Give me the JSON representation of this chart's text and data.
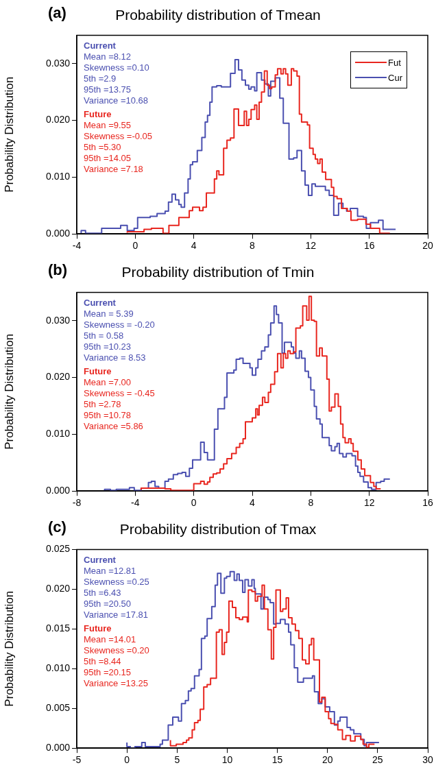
{
  "chart_data": [
    {
      "type": "step",
      "title": "Probability distribution of Tmean",
      "ylabel": "Probability Distribution",
      "annotations": [
        "(a)",
        "Current",
        "Mean =8.12",
        "Skewness =0.10",
        "5th =2.9",
        "95th =13.75",
        "Variance =10.68",
        "Future",
        "Mean =9.55",
        "Skewness =-0.05",
        "5th =5.30",
        "95th =14.05",
        "Variance =7.18"
      ],
      "xlim": [
        -4,
        20
      ],
      "xticks": [
        -4,
        0,
        4,
        8,
        12,
        16,
        20
      ],
      "ylim": [
        0,
        0.035
      ],
      "yticks": [
        {
          "value": 0,
          "label": "0.000"
        },
        {
          "value": 0.01,
          "label": "0.010"
        },
        {
          "value": 0.02,
          "label": "0.020"
        },
        {
          "value": 0.03,
          "label": "0.030"
        }
      ],
      "legend": "top right",
      "series": [
        {
          "name": "Fut",
          "color": "#e8261f",
          "x": [
            -0.55,
            0.6,
            1.1,
            1.9,
            2.3,
            2.98,
            3.69,
            3.92,
            4.39,
            4.63,
            4.86,
            5.41,
            5.57,
            5.72,
            6.04,
            6.27,
            6.51,
            6.75,
            7.06,
            7.45,
            7.61,
            7.76,
            7.92,
            8.16,
            8.31,
            8.47,
            8.63,
            8.83,
            9.02,
            9.18,
            9.33,
            9.57,
            9.73,
            9.96,
            10.12,
            10.28,
            10.43,
            10.67,
            10.83,
            11.06,
            11.22,
            11.37,
            11.77,
            11.92,
            12.16,
            12.31,
            12.47,
            12.63,
            12.78,
            13.02,
            13.41,
            13.57,
            13.8,
            14.1,
            14.5,
            14.75,
            15.2,
            15.77,
            16.08,
            16.71,
            17.0,
            17.41
          ],
          "values": [
            0.0002,
            0.0004,
            0.0008,
            0.001,
            0.0001,
            0.0015,
            0.0029,
            0.0041,
            0.0047,
            0.0041,
            0.0047,
            0.0072,
            0.0097,
            0.0111,
            0.0104,
            0.0151,
            0.0165,
            0.0169,
            0.022,
            0.0191,
            0.0216,
            0.0191,
            0.0202,
            0.0219,
            0.0227,
            0.0202,
            0.0232,
            0.025,
            0.0287,
            0.0262,
            0.0256,
            0.0259,
            0.028,
            0.0291,
            0.0282,
            0.0291,
            0.0282,
            0.0262,
            0.0291,
            0.0287,
            0.0278,
            0.0211,
            0.0197,
            0.0192,
            0.0151,
            0.014,
            0.0132,
            0.0124,
            0.0132,
            0.0109,
            0.0096,
            0.0082,
            0.0066,
            0.0062,
            0.0045,
            0.004,
            0.0024,
            0.0026,
            0.0017,
            0.001,
            0.0001,
            0.0001
          ]
        },
        {
          "name": "Cur",
          "color": "#4a4fb0",
          "x": [
            -3.7,
            -3.4,
            -2.3,
            -1.0,
            -0.55,
            -0.08,
            0.16,
            1.02,
            1.49,
            2.04,
            2.27,
            2.51,
            2.75,
            2.98,
            3.14,
            3.37,
            3.61,
            3.76,
            3.92,
            4.24,
            4.55,
            4.78,
            4.94,
            5.1,
            5.25,
            5.57,
            5.88,
            6.51,
            6.82,
            7.06,
            7.29,
            7.53,
            7.76,
            7.92,
            8.16,
            8.31,
            8.63,
            8.86,
            9.1,
            9.26,
            9.57,
            9.88,
            10.12,
            10.51,
            10.83,
            11.06,
            11.37,
            11.61,
            11.84,
            12.08,
            12.31,
            13.0,
            13.26,
            13.57,
            13.9,
            14.2,
            14.45,
            14.7,
            15.2,
            15.6,
            15.8,
            16.08,
            16.63,
            16.94,
            17.1,
            17.8
          ],
          "values": [
            0.0001,
            0.0006,
            0.0001,
            0.001,
            0.0015,
            0.0006,
            0.001,
            0.0029,
            0.0031,
            0.0036,
            0.004,
            0.0056,
            0.007,
            0.006,
            0.0052,
            0.0047,
            0.0072,
            0.0097,
            0.0122,
            0.0127,
            0.0147,
            0.017,
            0.0197,
            0.0209,
            0.0232,
            0.0259,
            0.0261,
            0.0259,
            0.0283,
            0.0307,
            0.0289,
            0.0271,
            0.0262,
            0.0255,
            0.0259,
            0.0252,
            0.0284,
            0.0271,
            0.0264,
            0.0243,
            0.0269,
            0.0275,
            0.0239,
            0.0195,
            0.0132,
            0.0134,
            0.0147,
            0.0111,
            0.0086,
            0.0068,
            0.0088,
            0.0084,
            0.0077,
            0.0068,
            0.0033,
            0.0054,
            0.0045,
            0.004,
            0.0045,
            0.0031,
            0.0029,
            0.001,
            0.002,
            0.0024,
            0.0008,
            0.0008
          ]
        }
      ]
    },
    {
      "type": "step",
      "title": "Probability distribution of Tmin",
      "ylabel": "Probability Distribution",
      "annotations": [
        "(b)",
        "Current",
        "Mean = 5.39",
        "Skewness = -0.20",
        "5th = 0.58",
        "95th =10.23",
        "Variance = 8.53",
        "Future",
        "Mean =7.00",
        "Skewness = -0.45",
        "5th =2.78",
        "95th =10.78",
        "Variance =5.86"
      ],
      "xlim": [
        -8,
        16
      ],
      "xticks": [
        -8,
        -4,
        0,
        4,
        8,
        12,
        16
      ],
      "ylim": [
        0,
        0.035
      ],
      "yticks": [
        {
          "value": 0,
          "label": "0.000"
        },
        {
          "value": 0.01,
          "label": "0.010"
        },
        {
          "value": 0.02,
          "label": "0.020"
        },
        {
          "value": 0.03,
          "label": "0.030"
        }
      ],
      "series": [
        {
          "color": "#e8261f",
          "x": [
            -3.6,
            -1.97,
            -1.57,
            0.0,
            0.47,
            0.71,
            0.94,
            1.1,
            1.33,
            1.57,
            1.8,
            2.04,
            2.27,
            2.59,
            2.9,
            3.14,
            3.37,
            3.53,
            4.0,
            4.24,
            4.36,
            4.47,
            4.7,
            4.86,
            5.1,
            5.26,
            5.53,
            5.73,
            5.96,
            6.12,
            6.28,
            6.43,
            6.59,
            6.82,
            6.98,
            7.29,
            7.45,
            7.72,
            7.88,
            8.04,
            8.24,
            8.39,
            8.6,
            8.78,
            9.1,
            9.26,
            9.41,
            9.65,
            9.88,
            10.04,
            10.2,
            10.35,
            10.59,
            10.75,
            10.9,
            11.22,
            11.45,
            11.69,
            12.08,
            12.31,
            12.47,
            12.63,
            12.78
          ],
          "values": [
            0.0002,
            0.0005,
            0.0004,
            0.0001,
            0.0013,
            0.0017,
            0.0012,
            0.0016,
            0.0024,
            0.003,
            0.0032,
            0.0039,
            0.0048,
            0.0057,
            0.0066,
            0.0077,
            0.0084,
            0.0092,
            0.0122,
            0.0129,
            0.0145,
            0.0134,
            0.0151,
            0.0165,
            0.0156,
            0.0174,
            0.0188,
            0.021,
            0.0242,
            0.0217,
            0.0242,
            0.0234,
            0.0247,
            0.0242,
            0.0245,
            0.0287,
            0.0291,
            0.0326,
            0.0301,
            0.0343,
            0.0301,
            0.0299,
            0.0238,
            0.0252,
            0.0238,
            0.0197,
            0.0141,
            0.0148,
            0.0171,
            0.0149,
            0.0118,
            0.0094,
            0.0085,
            0.0092,
            0.0084,
            0.007,
            0.0055,
            0.0039,
            0.0027,
            0.0015,
            0.0008,
            0.0004,
            0.0004
          ]
        },
        {
          "color": "#4a4fb0",
          "x": [
            -6.1,
            -5.7,
            -5.3,
            -4.4,
            -4.07,
            -3.6,
            -3.1,
            -2.9,
            -2.65,
            -2.4,
            -1.97,
            -1.73,
            -1.4,
            -1.1,
            -0.8,
            -0.55,
            -0.3,
            -0.08,
            0.47,
            0.71,
            0.94,
            1.41,
            1.65,
            1.88,
            2.1,
            2.27,
            2.74,
            2.9,
            3.14,
            3.37,
            3.84,
            4.0,
            4.24,
            4.39,
            4.63,
            4.86,
            5.1,
            5.26,
            5.49,
            5.65,
            5.8,
            6.04,
            6.2,
            6.67,
            6.82,
            6.98,
            7.22,
            7.37,
            7.61,
            7.84,
            8.0,
            8.24,
            8.39,
            8.63,
            8.78,
            9.26,
            9.41,
            9.65,
            9.8,
            9.96,
            10.2,
            10.43,
            10.82,
            11.06,
            11.22,
            11.37,
            11.61,
            11.92,
            12.16,
            12.47,
            12.78,
            13.02,
            13.18,
            13.41
          ],
          "values": [
            0.0001,
            0.0003,
            0.0001,
            0.0003,
            0.0006,
            0.0001,
            0.0005,
            0.0015,
            0.0017,
            0.0008,
            0.0005,
            0.0017,
            0.0021,
            0.0029,
            0.0031,
            0.0033,
            0.0026,
            0.004,
            0.0055,
            0.0086,
            0.0068,
            0.0055,
            0.0109,
            0.0145,
            0.0145,
            0.0165,
            0.0208,
            0.0213,
            0.0232,
            0.0234,
            0.0225,
            0.0217,
            0.0204,
            0.0217,
            0.0232,
            0.0247,
            0.0254,
            0.0275,
            0.0296,
            0.0326,
            0.0311,
            0.0296,
            0.0243,
            0.0262,
            0.0254,
            0.0243,
            0.0234,
            0.0247,
            0.0234,
            0.0211,
            0.02,
            0.0178,
            0.0149,
            0.0127,
            0.0118,
            0.0094,
            0.008,
            0.0071,
            0.0078,
            0.0084,
            0.0066,
            0.006,
            0.0066,
            0.0062,
            0.0044,
            0.0033,
            0.0026,
            0.0016,
            0.0006,
            0.0003,
            0.0015,
            0.0017,
            0.0021,
            0.0021
          ]
        }
      ]
    },
    {
      "type": "step",
      "title": "Probability distribution of Tmax",
      "ylabel": "Probability Distribution",
      "annotations": [
        "(c)",
        "Current",
        "Mean =12.81",
        "Skewness =0.25",
        "5th =6.43",
        "95th =20.50",
        "Variance =17.81",
        "Future",
        "Mean =14.01",
        "Skewness =0.20",
        "5th =8.44",
        "95th =20.15",
        "Variance =13.25"
      ],
      "xlim": [
        -5,
        30
      ],
      "xticks": [
        -5,
        0,
        5,
        10,
        15,
        20,
        25,
        30
      ],
      "ylim": [
        0,
        0.025
      ],
      "yticks": [
        {
          "value": 0,
          "label": "0.000"
        },
        {
          "value": 0.005,
          "label": "0.005"
        },
        {
          "value": 0.01,
          "label": "0.010"
        },
        {
          "value": 0.015,
          "label": "0.015"
        },
        {
          "value": 0.02,
          "label": "0.020"
        },
        {
          "value": 0.025,
          "label": "0.025"
        }
      ],
      "series": [
        {
          "color": "#e8261f",
          "x": [
            4.34,
            4.92,
            5.6,
            5.94,
            6.17,
            6.51,
            6.74,
            7.08,
            7.31,
            7.66,
            8.0,
            8.34,
            8.92,
            9.2,
            9.49,
            9.72,
            9.94,
            10.17,
            10.52,
            10.86,
            11.2,
            11.54,
            12.0,
            12.11,
            12.46,
            12.8,
            13.03,
            13.48,
            13.71,
            14.06,
            14.4,
            14.63,
            14.86,
            15.3,
            15.54,
            15.88,
            16.12,
            16.46,
            16.8,
            17.14,
            17.49,
            17.83,
            18.17,
            18.4,
            18.63,
            19.2,
            19.43,
            19.77,
            20.11,
            20.34,
            20.69,
            21.03,
            21.49,
            21.83,
            22.29,
            22.75,
            23.32,
            23.55,
            23.89,
            24.12,
            24.34,
            24.69
          ],
          "values": [
            0.001,
            0.0003,
            0.0005,
            0.0007,
            0.001,
            0.0013,
            0.0023,
            0.0032,
            0.0035,
            0.0049,
            0.0077,
            0.008,
            0.0088,
            0.0146,
            0.0149,
            0.0118,
            0.0133,
            0.0146,
            0.0185,
            0.0177,
            0.0164,
            0.0162,
            0.0165,
            0.0159,
            0.0199,
            0.0197,
            0.0185,
            0.0191,
            0.0205,
            0.0175,
            0.0149,
            0.0112,
            0.0152,
            0.0199,
            0.0172,
            0.0175,
            0.0189,
            0.0164,
            0.0156,
            0.0148,
            0.0138,
            0.0111,
            0.0106,
            0.013,
            0.0138,
            0.0111,
            0.0058,
            0.0064,
            0.0046,
            0.0037,
            0.0031,
            0.003,
            0.0023,
            0.0011,
            0.0016,
            0.0009,
            0.0015,
            0.0011,
            0.0005,
            0.0001,
            0.0005,
            0.0005
          ]
        },
        {
          "color": "#4a4fb0",
          "x": [
            0,
            0.34,
            0.8,
            1.48,
            1.83,
            3.31,
            3.54,
            4.12,
            4.57,
            5.14,
            5.44,
            5.83,
            6.13,
            6.4,
            6.74,
            7.2,
            7.43,
            7.77,
            8.0,
            8.46,
            8.8,
            9.03,
            9.37,
            9.72,
            9.94,
            10.29,
            10.7,
            10.97,
            11.2,
            11.54,
            11.77,
            12.11,
            12.46,
            12.69,
            12.8,
            13.37,
            13.6,
            14.06,
            14.29,
            14.63,
            14.86,
            15.3,
            15.77,
            16.12,
            16.34,
            16.69,
            17.03,
            17.6,
            18.5,
            18.7,
            19.08,
            19.43,
            19.77,
            20.22,
            20.69,
            21.03,
            21.26,
            21.95,
            22.29,
            22.63,
            23.32,
            23.66,
            23.89,
            24.69,
            25.14
          ],
          "values": [
            0.0007,
            0.0002,
            0.0,
            0.0002,
            0.0007,
            0.0002,
            0.0005,
            0.001,
            0.0029,
            0.0039,
            0.0034,
            0.0056,
            0.006,
            0.0072,
            0.0075,
            0.0091,
            0.0099,
            0.0138,
            0.0141,
            0.0163,
            0.0178,
            0.0205,
            0.022,
            0.0195,
            0.0214,
            0.0216,
            0.0222,
            0.0211,
            0.0219,
            0.0211,
            0.0196,
            0.0212,
            0.0204,
            0.0212,
            0.0201,
            0.0194,
            0.0175,
            0.019,
            0.0187,
            0.0183,
            0.0156,
            0.0157,
            0.0162,
            0.0156,
            0.0146,
            0.013,
            0.0101,
            0.0083,
            0.0088,
            0.0091,
            0.0071,
            0.0056,
            0.0062,
            0.0052,
            0.0046,
            0.0029,
            0.0034,
            0.0039,
            0.0026,
            0.0023,
            0.0018,
            0.0011,
            0.0003,
            0.0007,
            0.0007
          ]
        }
      ]
    }
  ]
}
